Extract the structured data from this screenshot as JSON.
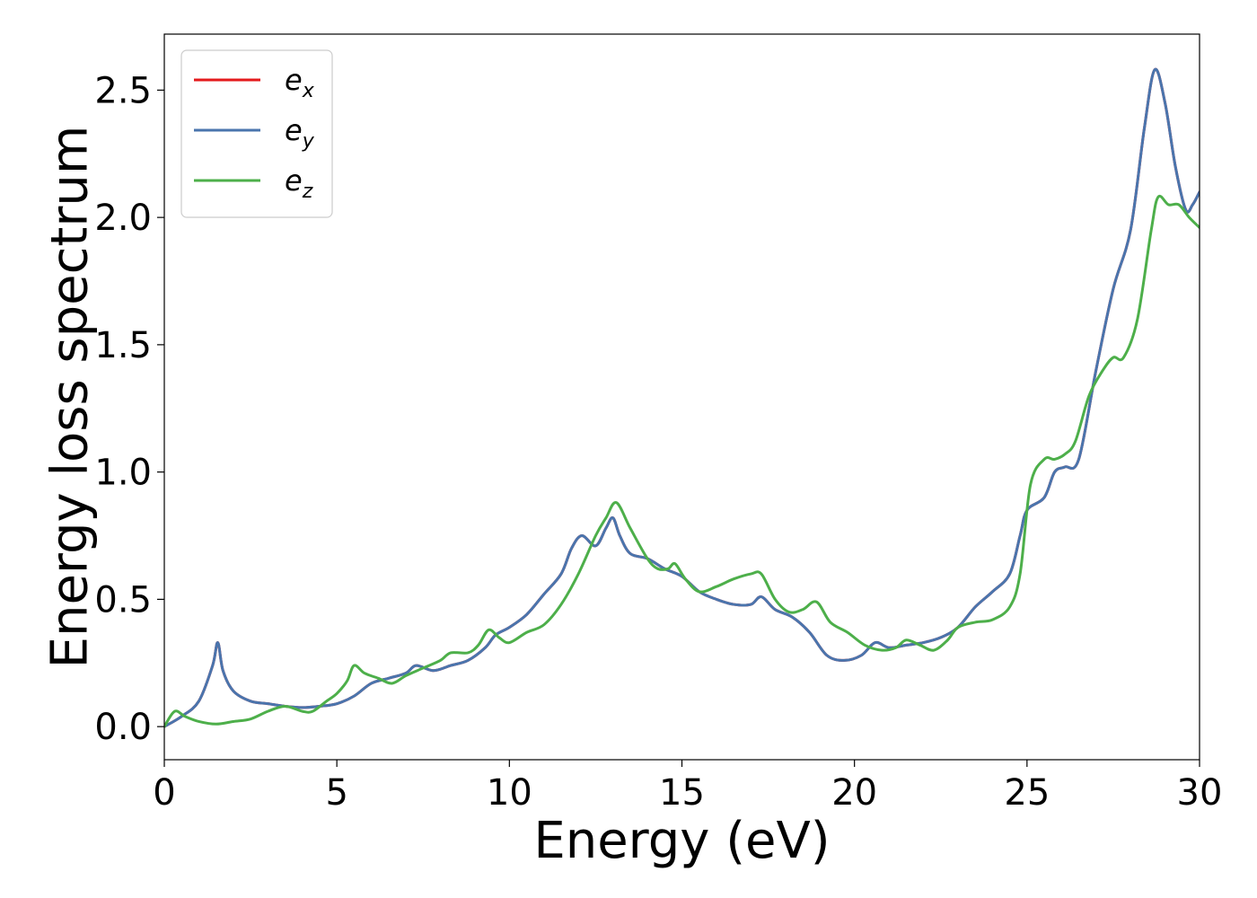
{
  "chart_data": {
    "type": "line",
    "xlabel": "Energy (eV)",
    "ylabel": "Energy loss spectrum",
    "xlim": [
      0,
      30
    ],
    "ylim": [
      -0.13,
      2.72
    ],
    "xticks": [
      0,
      5,
      10,
      15,
      20,
      25,
      30
    ],
    "xtick_labels": [
      "0",
      "5",
      "10",
      "15",
      "20",
      "25",
      "30"
    ],
    "yticks": [
      0.0,
      0.5,
      1.0,
      1.5,
      2.0,
      2.5
    ],
    "ytick_labels": [
      "0.0",
      "0.5",
      "1.0",
      "1.5",
      "2.0",
      "2.5"
    ],
    "grid": false,
    "legend_position": "top-left",
    "series": [
      {
        "name": "e",
        "subscript": "x",
        "color": "#e41a1c",
        "points": [
          [
            0,
            0
          ],
          [
            0.5,
            0.04
          ],
          [
            1.0,
            0.1
          ],
          [
            1.4,
            0.24
          ],
          [
            1.55,
            0.33
          ],
          [
            1.7,
            0.22
          ],
          [
            2.0,
            0.14
          ],
          [
            2.5,
            0.1
          ],
          [
            3.0,
            0.09
          ],
          [
            3.5,
            0.08
          ],
          [
            4.0,
            0.075
          ],
          [
            4.5,
            0.08
          ],
          [
            5.0,
            0.09
          ],
          [
            5.5,
            0.12
          ],
          [
            6.0,
            0.17
          ],
          [
            6.5,
            0.19
          ],
          [
            7.0,
            0.21
          ],
          [
            7.3,
            0.24
          ],
          [
            7.8,
            0.22
          ],
          [
            8.3,
            0.24
          ],
          [
            8.8,
            0.26
          ],
          [
            9.3,
            0.31
          ],
          [
            9.6,
            0.36
          ],
          [
            10.0,
            0.39
          ],
          [
            10.5,
            0.44
          ],
          [
            11.0,
            0.52
          ],
          [
            11.5,
            0.6
          ],
          [
            11.8,
            0.7
          ],
          [
            12.1,
            0.75
          ],
          [
            12.5,
            0.71
          ],
          [
            12.8,
            0.78
          ],
          [
            13.0,
            0.82
          ],
          [
            13.2,
            0.75
          ],
          [
            13.5,
            0.68
          ],
          [
            14.0,
            0.66
          ],
          [
            14.5,
            0.62
          ],
          [
            15.0,
            0.59
          ],
          [
            15.5,
            0.53
          ],
          [
            16.0,
            0.5
          ],
          [
            16.5,
            0.48
          ],
          [
            17.0,
            0.48
          ],
          [
            17.3,
            0.51
          ],
          [
            17.7,
            0.46
          ],
          [
            18.2,
            0.43
          ],
          [
            18.7,
            0.37
          ],
          [
            19.2,
            0.28
          ],
          [
            19.7,
            0.26
          ],
          [
            20.2,
            0.28
          ],
          [
            20.6,
            0.33
          ],
          [
            21.0,
            0.31
          ],
          [
            21.5,
            0.32
          ],
          [
            22.0,
            0.33
          ],
          [
            22.5,
            0.35
          ],
          [
            23.0,
            0.39
          ],
          [
            23.5,
            0.47
          ],
          [
            24.0,
            0.53
          ],
          [
            24.5,
            0.6
          ],
          [
            24.8,
            0.75
          ],
          [
            25.0,
            0.85
          ],
          [
            25.5,
            0.9
          ],
          [
            25.8,
            1.0
          ],
          [
            26.1,
            1.02
          ],
          [
            26.5,
            1.05
          ],
          [
            27.0,
            1.4
          ],
          [
            27.5,
            1.72
          ],
          [
            28.0,
            1.95
          ],
          [
            28.4,
            2.35
          ],
          [
            28.7,
            2.58
          ],
          [
            29.0,
            2.45
          ],
          [
            29.3,
            2.2
          ],
          [
            29.6,
            2.03
          ],
          [
            29.8,
            2.05
          ],
          [
            30.0,
            2.1
          ]
        ]
      },
      {
        "name": "e",
        "subscript": "y",
        "color": "#4a75ad",
        "points": [
          [
            0,
            0
          ],
          [
            0.5,
            0.04
          ],
          [
            1.0,
            0.1
          ],
          [
            1.4,
            0.24
          ],
          [
            1.55,
            0.33
          ],
          [
            1.7,
            0.22
          ],
          [
            2.0,
            0.14
          ],
          [
            2.5,
            0.1
          ],
          [
            3.0,
            0.09
          ],
          [
            3.5,
            0.08
          ],
          [
            4.0,
            0.075
          ],
          [
            4.5,
            0.08
          ],
          [
            5.0,
            0.09
          ],
          [
            5.5,
            0.12
          ],
          [
            6.0,
            0.17
          ],
          [
            6.5,
            0.19
          ],
          [
            7.0,
            0.21
          ],
          [
            7.3,
            0.24
          ],
          [
            7.8,
            0.22
          ],
          [
            8.3,
            0.24
          ],
          [
            8.8,
            0.26
          ],
          [
            9.3,
            0.31
          ],
          [
            9.6,
            0.36
          ],
          [
            10.0,
            0.39
          ],
          [
            10.5,
            0.44
          ],
          [
            11.0,
            0.52
          ],
          [
            11.5,
            0.6
          ],
          [
            11.8,
            0.7
          ],
          [
            12.1,
            0.75
          ],
          [
            12.5,
            0.71
          ],
          [
            12.8,
            0.78
          ],
          [
            13.0,
            0.82
          ],
          [
            13.2,
            0.75
          ],
          [
            13.5,
            0.68
          ],
          [
            14.0,
            0.66
          ],
          [
            14.5,
            0.62
          ],
          [
            15.0,
            0.59
          ],
          [
            15.5,
            0.53
          ],
          [
            16.0,
            0.5
          ],
          [
            16.5,
            0.48
          ],
          [
            17.0,
            0.48
          ],
          [
            17.3,
            0.51
          ],
          [
            17.7,
            0.46
          ],
          [
            18.2,
            0.43
          ],
          [
            18.7,
            0.37
          ],
          [
            19.2,
            0.28
          ],
          [
            19.7,
            0.26
          ],
          [
            20.2,
            0.28
          ],
          [
            20.6,
            0.33
          ],
          [
            21.0,
            0.31
          ],
          [
            21.5,
            0.32
          ],
          [
            22.0,
            0.33
          ],
          [
            22.5,
            0.35
          ],
          [
            23.0,
            0.39
          ],
          [
            23.5,
            0.47
          ],
          [
            24.0,
            0.53
          ],
          [
            24.5,
            0.6
          ],
          [
            24.8,
            0.75
          ],
          [
            25.0,
            0.85
          ],
          [
            25.5,
            0.9
          ],
          [
            25.8,
            1.0
          ],
          [
            26.1,
            1.02
          ],
          [
            26.5,
            1.05
          ],
          [
            27.0,
            1.4
          ],
          [
            27.5,
            1.72
          ],
          [
            28.0,
            1.95
          ],
          [
            28.4,
            2.35
          ],
          [
            28.7,
            2.58
          ],
          [
            29.0,
            2.45
          ],
          [
            29.3,
            2.2
          ],
          [
            29.6,
            2.03
          ],
          [
            29.8,
            2.05
          ],
          [
            30.0,
            2.1
          ]
        ]
      },
      {
        "name": "e",
        "subscript": "z",
        "color": "#4daf4a",
        "points": [
          [
            0,
            0
          ],
          [
            0.3,
            0.06
          ],
          [
            0.6,
            0.04
          ],
          [
            1.0,
            0.02
          ],
          [
            1.5,
            0.01
          ],
          [
            2.0,
            0.02
          ],
          [
            2.5,
            0.03
          ],
          [
            3.0,
            0.06
          ],
          [
            3.5,
            0.08
          ],
          [
            4.0,
            0.06
          ],
          [
            4.3,
            0.06
          ],
          [
            4.7,
            0.1
          ],
          [
            5.0,
            0.13
          ],
          [
            5.3,
            0.18
          ],
          [
            5.5,
            0.24
          ],
          [
            5.8,
            0.21
          ],
          [
            6.2,
            0.19
          ],
          [
            6.6,
            0.17
          ],
          [
            7.0,
            0.2
          ],
          [
            7.5,
            0.23
          ],
          [
            8.0,
            0.26
          ],
          [
            8.3,
            0.29
          ],
          [
            8.8,
            0.29
          ],
          [
            9.1,
            0.32
          ],
          [
            9.4,
            0.38
          ],
          [
            9.7,
            0.35
          ],
          [
            10.0,
            0.33
          ],
          [
            10.5,
            0.37
          ],
          [
            11.0,
            0.4
          ],
          [
            11.5,
            0.48
          ],
          [
            12.0,
            0.6
          ],
          [
            12.5,
            0.75
          ],
          [
            12.8,
            0.82
          ],
          [
            13.1,
            0.88
          ],
          [
            13.5,
            0.78
          ],
          [
            14.0,
            0.66
          ],
          [
            14.3,
            0.62
          ],
          [
            14.6,
            0.62
          ],
          [
            14.8,
            0.64
          ],
          [
            15.1,
            0.58
          ],
          [
            15.5,
            0.53
          ],
          [
            16.0,
            0.55
          ],
          [
            16.5,
            0.58
          ],
          [
            17.0,
            0.6
          ],
          [
            17.3,
            0.6
          ],
          [
            17.7,
            0.5
          ],
          [
            18.1,
            0.45
          ],
          [
            18.5,
            0.46
          ],
          [
            18.9,
            0.49
          ],
          [
            19.3,
            0.41
          ],
          [
            19.8,
            0.37
          ],
          [
            20.3,
            0.32
          ],
          [
            20.8,
            0.3
          ],
          [
            21.2,
            0.31
          ],
          [
            21.5,
            0.34
          ],
          [
            21.9,
            0.32
          ],
          [
            22.3,
            0.3
          ],
          [
            22.7,
            0.34
          ],
          [
            23.0,
            0.39
          ],
          [
            23.5,
            0.41
          ],
          [
            24.0,
            0.42
          ],
          [
            24.5,
            0.47
          ],
          [
            24.8,
            0.6
          ],
          [
            25.1,
            0.95
          ],
          [
            25.5,
            1.05
          ],
          [
            25.8,
            1.05
          ],
          [
            26.1,
            1.07
          ],
          [
            26.4,
            1.12
          ],
          [
            26.8,
            1.3
          ],
          [
            27.2,
            1.4
          ],
          [
            27.5,
            1.45
          ],
          [
            27.8,
            1.45
          ],
          [
            28.2,
            1.6
          ],
          [
            28.6,
            1.95
          ],
          [
            28.8,
            2.08
          ],
          [
            29.1,
            2.05
          ],
          [
            29.4,
            2.05
          ],
          [
            29.7,
            2.0
          ],
          [
            30.0,
            1.96
          ]
        ]
      }
    ]
  }
}
